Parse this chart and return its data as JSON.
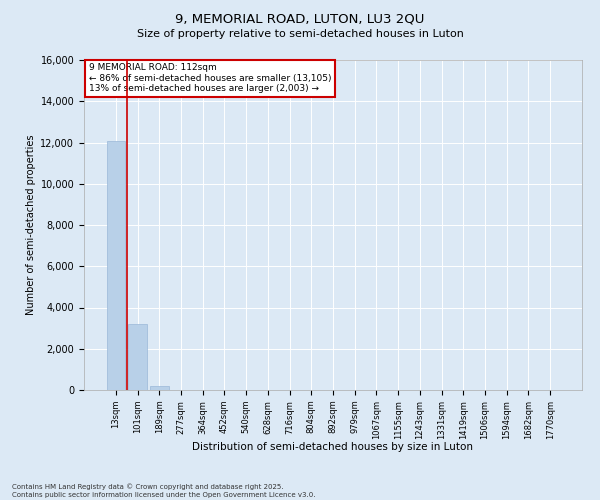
{
  "title1": "9, MEMORIAL ROAD, LUTON, LU3 2QU",
  "title2": "Size of property relative to semi-detached houses in Luton",
  "xlabel": "Distribution of semi-detached houses by size in Luton",
  "ylabel": "Number of semi-detached properties",
  "annotation_title": "9 MEMORIAL ROAD: 112sqm",
  "annotation_line1": "← 86% of semi-detached houses are smaller (13,105)",
  "annotation_line2": "13% of semi-detached houses are larger (2,003) →",
  "footer1": "Contains HM Land Registry data © Crown copyright and database right 2025.",
  "footer2": "Contains public sector information licensed under the Open Government Licence v3.0.",
  "categories": [
    "13sqm",
    "101sqm",
    "189sqm",
    "277sqm",
    "364sqm",
    "452sqm",
    "540sqm",
    "628sqm",
    "716sqm",
    "804sqm",
    "892sqm",
    "979sqm",
    "1067sqm",
    "1155sqm",
    "1243sqm",
    "1331sqm",
    "1419sqm",
    "1506sqm",
    "1594sqm",
    "1682sqm",
    "1770sqm"
  ],
  "values": [
    12050,
    3200,
    170,
    0,
    0,
    0,
    0,
    0,
    0,
    0,
    0,
    0,
    0,
    0,
    0,
    0,
    0,
    0,
    0,
    0,
    0
  ],
  "bar_color": "#b8d0e8",
  "bar_edge_color": "#9ab8d8",
  "property_line_color": "#cc0000",
  "annotation_box_color": "#cc0000",
  "background_color": "#dce9f5",
  "plot_bg_color": "#dce9f5",
  "ylim": [
    0,
    16000
  ],
  "yticks": [
    0,
    2000,
    4000,
    6000,
    8000,
    10000,
    12000,
    14000,
    16000
  ]
}
